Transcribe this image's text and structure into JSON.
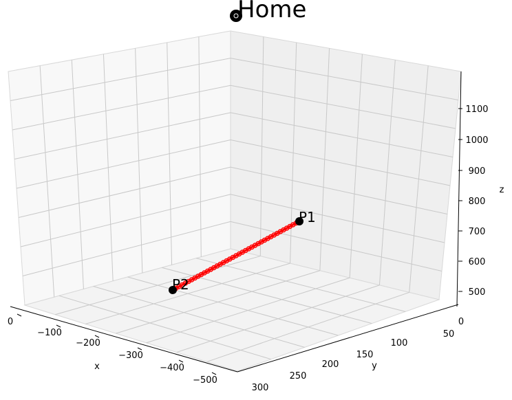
{
  "chart_data": {
    "type": "line3d",
    "x_ticks": [
      "0",
      "−100",
      "−200",
      "−300",
      "−400",
      "−500"
    ],
    "y_ticks": [
      "0",
      "50",
      "100",
      "150",
      "200",
      "250",
      "300"
    ],
    "z_ticks": [
      "500",
      "600",
      "700",
      "800",
      "900",
      "1000",
      "1100"
    ],
    "xlabel": "x",
    "ylabel": "y",
    "zlabel": "z",
    "grid": true,
    "points": [
      {
        "label": "P1",
        "x": -100,
        "y": 200,
        "z": 700
      },
      {
        "label": "P2",
        "x": -450,
        "y": 100,
        "z": 550
      }
    ],
    "home": {
      "label": "Home",
      "x": 0,
      "y": 0,
      "z": 1200
    },
    "segment_color": "#ff0000",
    "marker_color": "#000000"
  }
}
